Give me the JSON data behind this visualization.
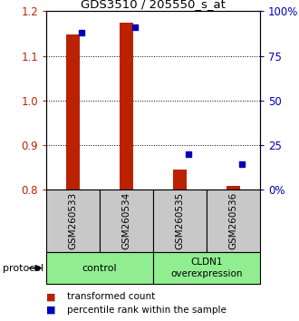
{
  "title": "GDS3510 / 205550_s_at",
  "samples": [
    "GSM260533",
    "GSM260534",
    "GSM260535",
    "GSM260536"
  ],
  "red_values": [
    1.148,
    1.175,
    0.845,
    0.808
  ],
  "blue_values": [
    88,
    91,
    20,
    14
  ],
  "ylim_left": [
    0.8,
    1.2
  ],
  "ylim_right": [
    0,
    100
  ],
  "yticks_left": [
    0.8,
    0.9,
    1.0,
    1.1,
    1.2
  ],
  "yticks_right": [
    0,
    25,
    50,
    75,
    100
  ],
  "red_color": "#bb2200",
  "blue_color": "#0000bb",
  "bar_width": 0.25,
  "bg_color": "#c8c8c8",
  "panel_bg": "#ffffff",
  "legend_red": "transformed count",
  "legend_blue": "percentile rank within the sample",
  "protocol_label": "protocol",
  "group_color": "#90EE90",
  "control_label": "control",
  "overexp_label": "CLDN1\noverexpression"
}
